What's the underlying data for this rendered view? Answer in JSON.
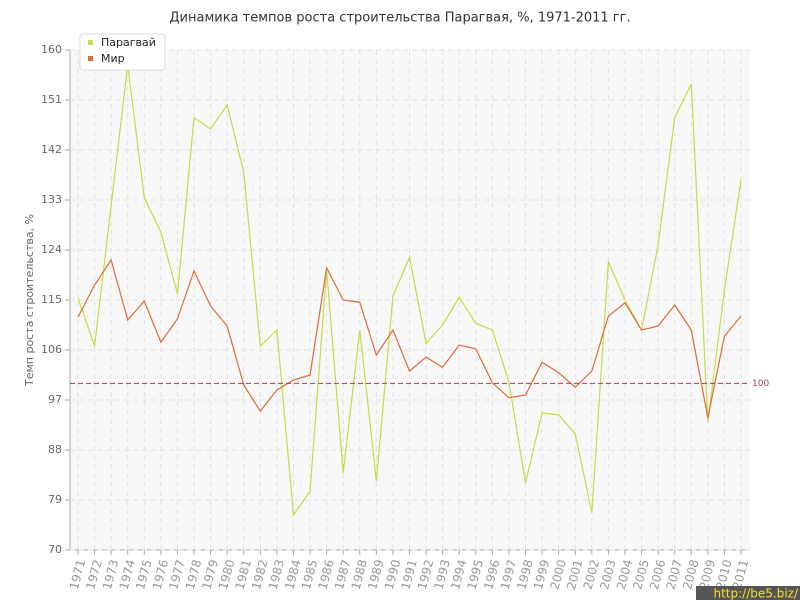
{
  "chart_data": {
    "type": "line",
    "title": "Динамика темпов роста строительства Парагвая, %, 1971-2011 гг.",
    "y_label": "Темп роста строительства, %",
    "categories": [
      "1971",
      "1972",
      "1973",
      "1974",
      "1975",
      "1976",
      "1977",
      "1978",
      "1979",
      "1980",
      "1981",
      "1982",
      "1983",
      "1984",
      "1985",
      "1986",
      "1987",
      "1988",
      "1989",
      "1990",
      "1991",
      "1992",
      "1993",
      "1994",
      "1995",
      "1996",
      "1997",
      "1998",
      "1999",
      "2000",
      "2001",
      "2002",
      "2003",
      "2004",
      "2005",
      "2006",
      "2007",
      "2008",
      "2009",
      "2010",
      "2011"
    ],
    "series": [
      {
        "name": "Парагвай",
        "color": "#c3dd45",
        "values": [
          115.4,
          106.7,
          132,
          157.3,
          133.4,
          127.2,
          116.1,
          147.8,
          145.8,
          150.1,
          138,
          106.7,
          109.6,
          76.3,
          80.6,
          120.4,
          83.9,
          109.6,
          82.4,
          115.7,
          122.7,
          107.2,
          110.5,
          115.5,
          110.8,
          109.6,
          100.2,
          82.1,
          94.7,
          94.3,
          90.9,
          76.7,
          121.9,
          115,
          109.6,
          124.9,
          147.8,
          153.9,
          93,
          116.8,
          136.6
        ]
      },
      {
        "name": "Мир",
        "color": "#e0693a",
        "values": [
          111.9,
          117.7,
          122.2,
          111.4,
          114.8,
          107.4,
          111.6,
          120.2,
          113.9,
          110.3,
          99.7,
          95,
          98.8,
          100.6,
          101.5,
          120.8,
          115,
          114.6,
          105.1,
          109.6,
          102.2,
          104.7,
          102.9,
          106.9,
          106.2,
          100.1,
          97.4,
          97.9,
          103.8,
          101.9,
          99.3,
          102.2,
          112.1,
          114.5,
          109.6,
          110.3,
          114.1,
          109.6,
          93.8,
          108.5,
          112.1
        ]
      }
    ],
    "ylim": [
      70,
      160
    ],
    "yticks": [
      70,
      79,
      88,
      97,
      106,
      115,
      124,
      133,
      142,
      151,
      160
    ],
    "grid": true,
    "legend": "top-left",
    "reference_line": 100,
    "watermark": "http://be5.biz/"
  }
}
